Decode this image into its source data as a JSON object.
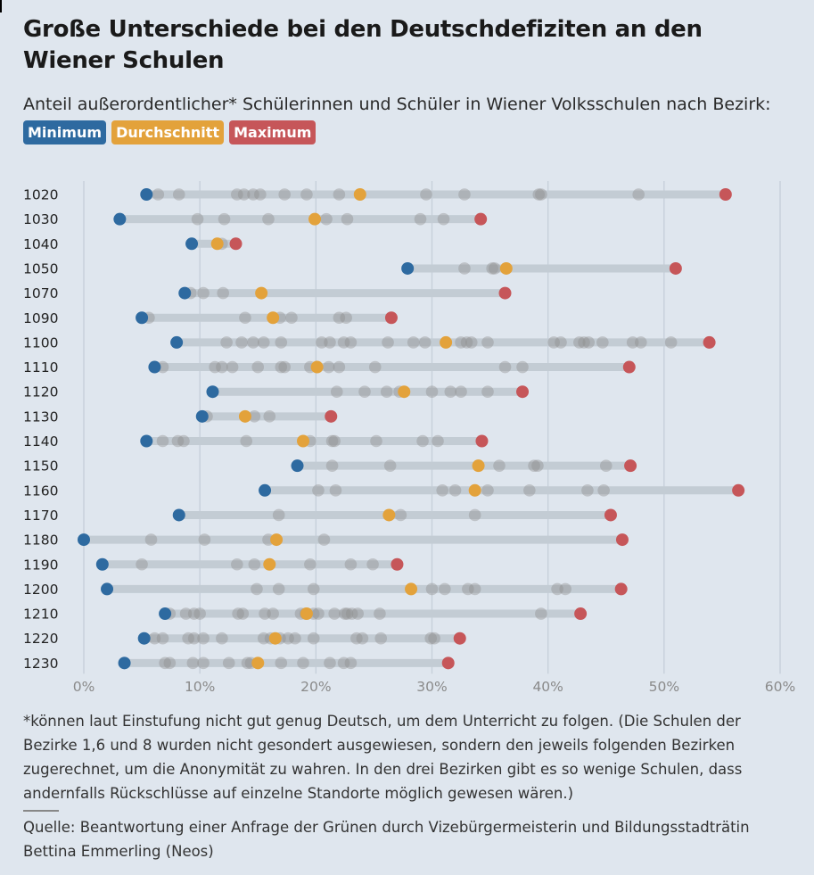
{
  "title": "Große Unterschiede bei den Deutschdefiziten an den Wiener Schulen",
  "subtitle_before": "Anteil außerordentlicher* Schülerinnen und Schüler in Wiener Volksschulen nach Bezirk:",
  "legend": [
    {
      "label": "Minimum",
      "color": "#2e6aa0"
    },
    {
      "label": "Durchschnitt",
      "color": "#e3a23b"
    },
    {
      "label": "Maximum",
      "color": "#c65659"
    }
  ],
  "note": "*können laut Einstufung nicht gut genug Deutsch, um dem Unterricht zu folgen. (Die Schulen der Bezirke 1,6 und 8 wurden nicht gesondert ausgewiesen, sondern den jeweils folgenden Bezirken zugerechnet, um die Anonymität zu wahren. In den drei Bezirken gibt es so wenige Schulen, dass andernfalls Rückschlüsse auf einzelne Standorte möglich gewesen wären.)",
  "source": "Quelle: Beantwortung einer Anfrage der Grünen durch Vizebürgermeisterin und Bildungsstadträtin Bettina Emmerling (Neos)",
  "colors": {
    "background": "#dfe6ee",
    "minimum": "#2e6aa0",
    "average": "#e3a23b",
    "maximum": "#c65659",
    "school": "#8c8c8c",
    "range_bar": "#c3ccd4",
    "grid": "#c7d0da",
    "axis_text": "#8a8a8a"
  },
  "chart_data": {
    "type": "scatter",
    "x_axis": {
      "min": 0,
      "max": 60,
      "ticks": [
        "0%",
        "10%",
        "20%",
        "30%",
        "40%",
        "50%",
        "60%"
      ],
      "unit": "%"
    },
    "grid": true,
    "rows": [
      {
        "district": "1020",
        "min": 5.4,
        "avg": 23.8,
        "max": 55.3,
        "schools": [
          6.4,
          8.2,
          13.2,
          13.8,
          14.6,
          15.2,
          17.3,
          19.2,
          22.0,
          29.5,
          32.8,
          39.2,
          39.4,
          47.8
        ]
      },
      {
        "district": "1030",
        "min": 3.1,
        "avg": 19.9,
        "max": 34.2,
        "schools": [
          9.8,
          12.1,
          15.9,
          20.9,
          22.7,
          29.0,
          31.0
        ]
      },
      {
        "district": "1040",
        "min": 9.3,
        "avg": 11.5,
        "max": 13.1,
        "schools": [
          11.9
        ]
      },
      {
        "district": "1050",
        "min": 27.9,
        "avg": 36.4,
        "max": 51.0,
        "schools": [
          32.8,
          35.2,
          35.4
        ]
      },
      {
        "district": "1070",
        "min": 8.7,
        "avg": 15.3,
        "max": 36.3,
        "schools": [
          9.2,
          10.3,
          12.0
        ]
      },
      {
        "district": "1090",
        "min": 5.0,
        "avg": 16.3,
        "max": 26.5,
        "schools": [
          5.6,
          13.9,
          16.9,
          17.9,
          22.0,
          22.6
        ]
      },
      {
        "district": "1100",
        "min": 8.0,
        "avg": 31.2,
        "max": 53.9,
        "schools": [
          12.3,
          13.6,
          14.6,
          15.5,
          17.0,
          20.5,
          21.2,
          22.4,
          23.0,
          26.2,
          28.4,
          29.4,
          32.5,
          33.0,
          33.4,
          34.8,
          40.5,
          41.1,
          42.7,
          43.1,
          43.5,
          44.7,
          47.3,
          48.0,
          50.6
        ]
      },
      {
        "district": "1110",
        "min": 6.1,
        "avg": 20.1,
        "max": 47.0,
        "schools": [
          6.8,
          11.3,
          11.9,
          12.8,
          15.0,
          17.0,
          17.3,
          19.5,
          21.1,
          22.0,
          25.1,
          36.3,
          37.8
        ]
      },
      {
        "district": "1120",
        "min": 11.1,
        "avg": 27.6,
        "max": 37.8,
        "schools": [
          21.8,
          24.2,
          26.1,
          27.2,
          30.0,
          31.6,
          32.5,
          34.8
        ]
      },
      {
        "district": "1130",
        "min": 10.2,
        "avg": 13.9,
        "max": 21.3,
        "schools": [
          10.6,
          14.7,
          16.0
        ]
      },
      {
        "district": "1140",
        "min": 5.4,
        "avg": 18.9,
        "max": 34.3,
        "schools": [
          6.8,
          8.1,
          8.6,
          14.0,
          19.5,
          21.4,
          21.6,
          25.2,
          29.2,
          30.5
        ]
      },
      {
        "district": "1150",
        "min": 18.4,
        "avg": 34.0,
        "max": 47.1,
        "schools": [
          21.4,
          26.4,
          35.8,
          38.8,
          39.1,
          45.0
        ]
      },
      {
        "district": "1160",
        "min": 15.6,
        "avg": 33.7,
        "max": 56.4,
        "schools": [
          20.2,
          21.7,
          30.9,
          32.0,
          34.8,
          38.4,
          43.4,
          44.8
        ]
      },
      {
        "district": "1170",
        "min": 8.2,
        "avg": 26.3,
        "max": 45.4,
        "schools": [
          16.8,
          27.3,
          33.7
        ]
      },
      {
        "district": "1180",
        "min": 0.0,
        "avg": 16.6,
        "max": 46.4,
        "schools": [
          5.8,
          10.4,
          15.9,
          20.7
        ]
      },
      {
        "district": "1190",
        "min": 1.6,
        "avg": 16.0,
        "max": 27.0,
        "schools": [
          5.0,
          13.2,
          14.7,
          19.5,
          23.0,
          24.9
        ]
      },
      {
        "district": "1200",
        "min": 2.0,
        "avg": 28.2,
        "max": 46.3,
        "schools": [
          14.9,
          16.8,
          19.8,
          30.0,
          31.1,
          33.1,
          33.7,
          40.8,
          41.5
        ]
      },
      {
        "district": "1210",
        "min": 7.0,
        "avg": 19.2,
        "max": 42.8,
        "schools": [
          7.4,
          8.8,
          9.5,
          10.0,
          13.3,
          13.7,
          15.6,
          16.3,
          18.7,
          19.1,
          19.8,
          20.2,
          21.6,
          22.5,
          22.7,
          23.1,
          23.6,
          25.5,
          39.4
        ]
      },
      {
        "district": "1220",
        "min": 5.2,
        "avg": 16.5,
        "max": 32.4,
        "schools": [
          6.1,
          6.8,
          9.0,
          9.5,
          10.3,
          11.9,
          15.5,
          16.1,
          16.9,
          17.6,
          18.2,
          19.8,
          23.5,
          24.0,
          25.6,
          29.9,
          30.2
        ]
      },
      {
        "district": "1230",
        "min": 3.5,
        "avg": 15.0,
        "max": 31.4,
        "schools": [
          7.0,
          7.4,
          9.4,
          10.3,
          12.5,
          14.1,
          14.4,
          17.0,
          18.9,
          21.2,
          22.4,
          23.0
        ]
      }
    ]
  }
}
